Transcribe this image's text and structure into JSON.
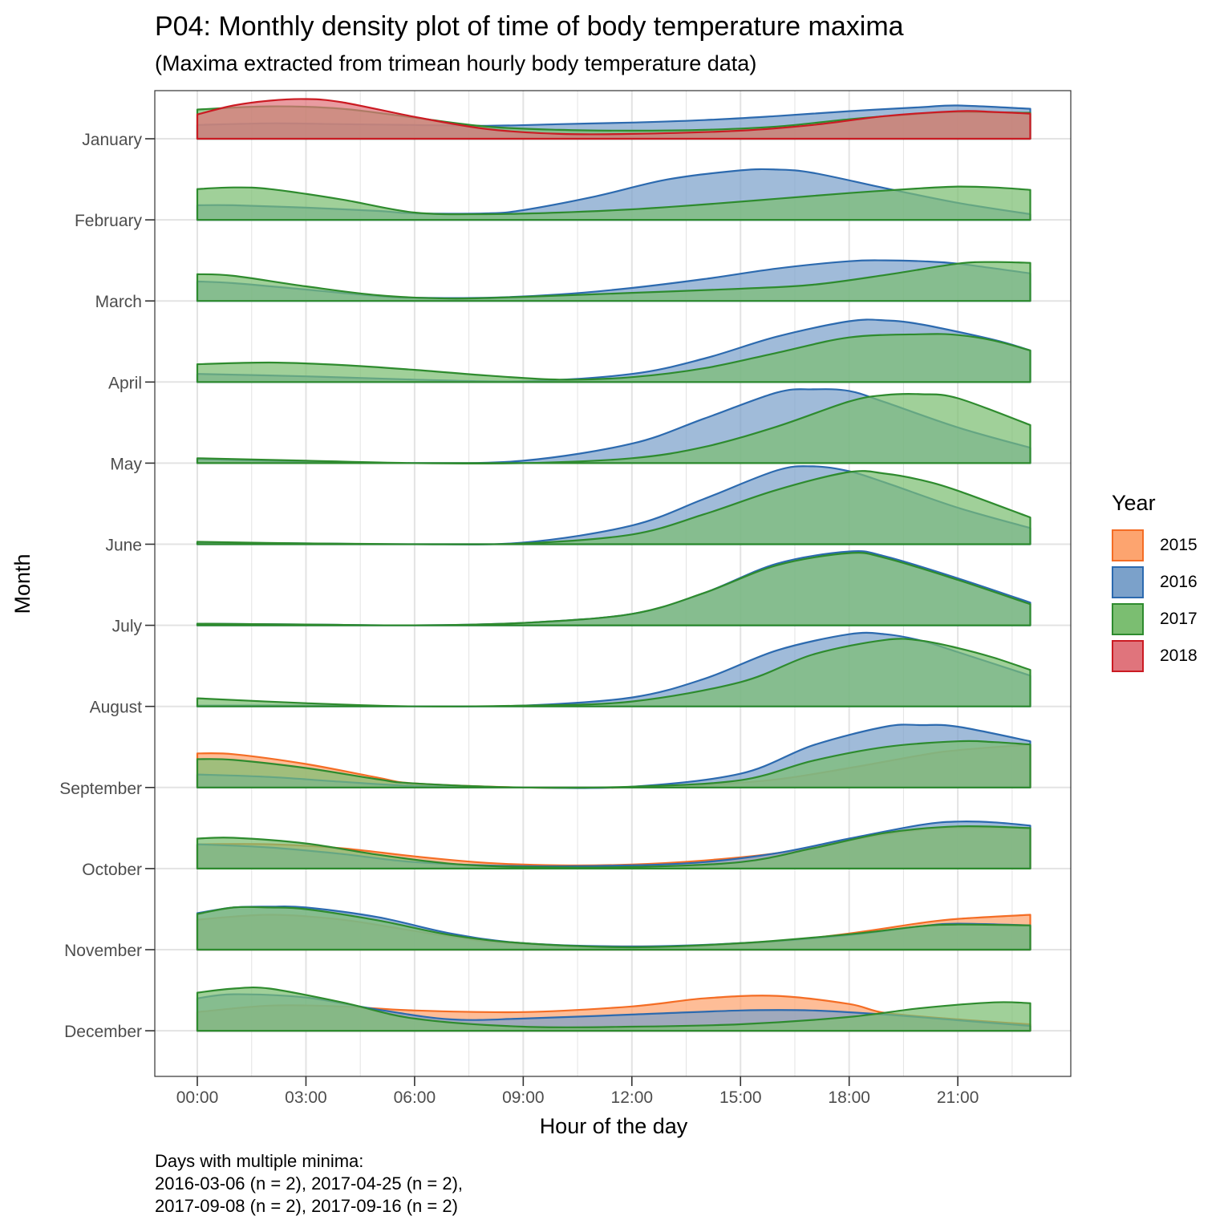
{
  "title": "P04: Monthly density plot of time of body temperature maxima",
  "subtitle": "(Maxima extracted from trimean hourly body temperature data)",
  "caption": {
    "line1": "Days with multiple minima:",
    "line2": "2016-03-06 (n = 2), 2017-04-25 (n = 2),",
    "line3": "2017-09-08 (n = 2), 2017-09-16 (n = 2)"
  },
  "chart_data": {
    "type": "area",
    "subtype": "ridgeline-density",
    "xlabel": "Hour of the day",
    "ylabel": "Month",
    "xlim": [
      0,
      23
    ],
    "x_ticks": [
      0,
      3,
      6,
      9,
      12,
      15,
      18,
      21
    ],
    "x_tick_labels": [
      "00:00",
      "03:00",
      "06:00",
      "09:00",
      "12:00",
      "15:00",
      "18:00",
      "21:00"
    ],
    "categories": [
      "January",
      "February",
      "March",
      "April",
      "May",
      "June",
      "July",
      "August",
      "September",
      "October",
      "November",
      "December"
    ],
    "legend_title": "Year",
    "legend_position": "right",
    "grid": true,
    "density_scale_note": "relative ridge height, 1.0 = one month-row spacing",
    "series": [
      {
        "name": "2015",
        "color": "#F46D25",
        "fill": "#FDA46F",
        "curves": {
          "September": {
            "x": [
              0,
              1,
              3,
              5,
              6,
              9,
              12,
              14,
              16,
              18,
              20,
              21,
              23
            ],
            "y": [
              0.42,
              0.41,
              0.29,
              0.12,
              0.05,
              0.0,
              0.0,
              0.03,
              0.1,
              0.24,
              0.4,
              0.46,
              0.53
            ]
          },
          "October": {
            "x": [
              0,
              2,
              4,
              6,
              8,
              10,
              12,
              14,
              16,
              18,
              20,
              21,
              23
            ],
            "y": [
              0.3,
              0.3,
              0.25,
              0.15,
              0.07,
              0.04,
              0.05,
              0.1,
              0.19,
              0.35,
              0.48,
              0.5,
              0.5
            ]
          },
          "November": {
            "x": [
              0,
              2,
              4,
              6,
              8,
              10,
              12,
              14,
              16,
              18,
              20,
              21,
              23
            ],
            "y": [
              0.37,
              0.43,
              0.37,
              0.23,
              0.1,
              0.05,
              0.04,
              0.05,
              0.1,
              0.2,
              0.33,
              0.38,
              0.43
            ]
          },
          "December": {
            "x": [
              0,
              2,
              4,
              6,
              9,
              12,
              14,
              16,
              18,
              19,
              21,
              23
            ],
            "y": [
              0.23,
              0.31,
              0.3,
              0.25,
              0.23,
              0.3,
              0.4,
              0.43,
              0.33,
              0.22,
              0.14,
              0.08
            ]
          }
        }
      },
      {
        "name": "2016",
        "color": "#2C6AAF",
        "fill": "#7BA1CA",
        "curves": {
          "January": {
            "x": [
              0,
              2,
              4,
              6,
              8,
              10,
              12,
              14,
              16,
              18,
              20,
              21,
              23
            ],
            "y": [
              0.17,
              0.19,
              0.18,
              0.17,
              0.16,
              0.18,
              0.2,
              0.23,
              0.28,
              0.34,
              0.39,
              0.41,
              0.37
            ]
          },
          "February": {
            "x": [
              0,
              1,
              3,
              5,
              6,
              8,
              9,
              11,
              13,
              15,
              16,
              17,
              19,
              21,
              23
            ],
            "y": [
              0.18,
              0.18,
              0.15,
              0.11,
              0.08,
              0.08,
              0.12,
              0.29,
              0.5,
              0.61,
              0.62,
              0.58,
              0.39,
              0.21,
              0.07
            ]
          },
          "March": {
            "x": [
              0,
              1,
              3,
              5,
              6,
              8,
              10,
              12,
              14,
              16,
              18,
              19,
              20,
              21,
              23
            ],
            "y": [
              0.24,
              0.22,
              0.14,
              0.06,
              0.04,
              0.04,
              0.08,
              0.16,
              0.27,
              0.4,
              0.49,
              0.5,
              0.49,
              0.46,
              0.34
            ]
          },
          "April": {
            "x": [
              0,
              3,
              6,
              9,
              12,
              14,
              16,
              18,
              19,
              20,
              22,
              23
            ],
            "y": [
              0.1,
              0.07,
              0.03,
              0.01,
              0.1,
              0.29,
              0.56,
              0.75,
              0.76,
              0.71,
              0.52,
              0.39
            ]
          },
          "May": {
            "x": [
              0,
              3,
              6,
              9,
              12,
              14,
              16,
              17,
              18,
              19,
              21,
              23
            ],
            "y": [
              0.05,
              0.02,
              0.0,
              0.03,
              0.24,
              0.55,
              0.87,
              0.91,
              0.89,
              0.75,
              0.44,
              0.19
            ]
          },
          "June": {
            "x": [
              0,
              3,
              6,
              9,
              12,
              14,
              16,
              17,
              18,
              19,
              21,
              23
            ],
            "y": [
              0.02,
              0.01,
              0.0,
              0.02,
              0.23,
              0.56,
              0.91,
              0.96,
              0.9,
              0.76,
              0.45,
              0.2
            ]
          },
          "July": {
            "x": [
              0,
              3,
              6,
              9,
              12,
              14,
              16,
              18,
              19,
              21,
              23
            ],
            "y": [
              0.02,
              0.01,
              0.0,
              0.03,
              0.14,
              0.4,
              0.76,
              0.91,
              0.85,
              0.58,
              0.28
            ]
          },
          "August": {
            "x": [
              0,
              3,
              6,
              9,
              12,
              14,
              16,
              18,
              19,
              20,
              21,
              23
            ],
            "y": [
              0.01,
              0.01,
              0.0,
              0.01,
              0.11,
              0.34,
              0.69,
              0.89,
              0.89,
              0.81,
              0.67,
              0.38
            ]
          },
          "September": {
            "x": [
              0,
              2,
              4,
              6,
              9,
              12,
              15,
              17,
              19,
              20,
              21,
              23
            ],
            "y": [
              0.16,
              0.13,
              0.07,
              0.02,
              0.0,
              0.01,
              0.17,
              0.52,
              0.75,
              0.77,
              0.75,
              0.57
            ]
          },
          "October": {
            "x": [
              0,
              2,
              4,
              6,
              9,
              12,
              14,
              16,
              18,
              20,
              21,
              22,
              23
            ],
            "y": [
              0.3,
              0.26,
              0.18,
              0.08,
              0.03,
              0.04,
              0.08,
              0.19,
              0.37,
              0.54,
              0.58,
              0.57,
              0.53
            ]
          },
          "November": {
            "x": [
              0,
              1,
              2,
              3,
              5,
              7,
              9,
              12,
              15,
              18,
              20,
              21,
              23
            ],
            "y": [
              0.45,
              0.52,
              0.53,
              0.52,
              0.4,
              0.2,
              0.08,
              0.04,
              0.08,
              0.18,
              0.29,
              0.32,
              0.3
            ]
          },
          "December": {
            "x": [
              0,
              1,
              3,
              5,
              7,
              9,
              12,
              15,
              17,
              19,
              21,
              23
            ],
            "y": [
              0.4,
              0.45,
              0.41,
              0.26,
              0.14,
              0.15,
              0.2,
              0.25,
              0.25,
              0.2,
              0.13,
              0.06
            ]
          }
        }
      },
      {
        "name": "2017",
        "color": "#2E8B2E",
        "fill": "#7BBE71",
        "curves": {
          "January": {
            "x": [
              0,
              2,
              4,
              6,
              8,
              10,
              12,
              14,
              16,
              18,
              20,
              21,
              23
            ],
            "y": [
              0.36,
              0.4,
              0.37,
              0.26,
              0.15,
              0.11,
              0.1,
              0.11,
              0.15,
              0.24,
              0.31,
              0.33,
              0.32
            ]
          },
          "February": {
            "x": [
              0,
              1,
              2,
              4,
              6,
              8,
              10,
              12,
              14,
              16,
              18,
              20,
              21,
              22,
              23
            ],
            "y": [
              0.38,
              0.4,
              0.38,
              0.25,
              0.09,
              0.07,
              0.09,
              0.13,
              0.19,
              0.26,
              0.33,
              0.39,
              0.41,
              0.4,
              0.37
            ]
          },
          "March": {
            "x": [
              0,
              1,
              3,
              5,
              7,
              9,
              12,
              15,
              17,
              19,
              21,
              22,
              23
            ],
            "y": [
              0.33,
              0.31,
              0.18,
              0.07,
              0.03,
              0.05,
              0.1,
              0.15,
              0.2,
              0.32,
              0.46,
              0.48,
              0.47
            ]
          },
          "April": {
            "x": [
              0,
              2,
              4,
              6,
              8,
              10,
              12,
              14,
              16,
              18,
              20,
              21,
              22,
              23
            ],
            "y": [
              0.22,
              0.24,
              0.21,
              0.15,
              0.08,
              0.03,
              0.06,
              0.17,
              0.36,
              0.55,
              0.59,
              0.58,
              0.51,
              0.39
            ]
          },
          "May": {
            "x": [
              0,
              3,
              6,
              9,
              12,
              14,
              16,
              18,
              19,
              20,
              21,
              23
            ],
            "y": [
              0.06,
              0.03,
              0.0,
              0.0,
              0.06,
              0.2,
              0.45,
              0.76,
              0.84,
              0.85,
              0.8,
              0.47
            ]
          },
          "June": {
            "x": [
              0,
              3,
              6,
              9,
              12,
              14,
              16,
              18,
              19,
              20,
              21,
              23
            ],
            "y": [
              0.03,
              0.01,
              0.0,
              0.01,
              0.12,
              0.37,
              0.67,
              0.89,
              0.87,
              0.79,
              0.66,
              0.33
            ]
          },
          "July": {
            "x": [
              0,
              3,
              6,
              9,
              12,
              14,
              16,
              18,
              19,
              21,
              23
            ],
            "y": [
              0.02,
              0.01,
              0.0,
              0.03,
              0.14,
              0.4,
              0.74,
              0.89,
              0.83,
              0.56,
              0.26
            ]
          },
          "August": {
            "x": [
              0,
              3,
              6,
              9,
              12,
              15,
              17,
              19,
              20,
              21,
              22,
              23
            ],
            "y": [
              0.1,
              0.04,
              0.0,
              0.01,
              0.06,
              0.3,
              0.64,
              0.82,
              0.81,
              0.72,
              0.6,
              0.45
            ]
          },
          "September": {
            "x": [
              0,
              1,
              3,
              5,
              6,
              9,
              12,
              15,
              17,
              19,
              21,
              22,
              23
            ],
            "y": [
              0.35,
              0.34,
              0.24,
              0.1,
              0.05,
              0.0,
              0.01,
              0.09,
              0.33,
              0.5,
              0.57,
              0.56,
              0.53
            ]
          },
          "October": {
            "x": [
              0,
              1,
              3,
              5,
              7,
              9,
              12,
              15,
              17,
              19,
              21,
              23
            ],
            "y": [
              0.37,
              0.38,
              0.31,
              0.17,
              0.06,
              0.02,
              0.02,
              0.08,
              0.25,
              0.44,
              0.52,
              0.5
            ]
          },
          "November": {
            "x": [
              0,
              1,
              2,
              3,
              5,
              7,
              9,
              12,
              15,
              18,
              20,
              21,
              23
            ],
            "y": [
              0.44,
              0.52,
              0.52,
              0.5,
              0.36,
              0.18,
              0.08,
              0.03,
              0.08,
              0.19,
              0.29,
              0.31,
              0.3
            ]
          },
          "December": {
            "x": [
              0,
              1,
              2,
              4,
              6,
              9,
              12,
              15,
              18,
              20,
              22,
              23
            ],
            "y": [
              0.47,
              0.52,
              0.52,
              0.35,
              0.15,
              0.05,
              0.05,
              0.08,
              0.17,
              0.28,
              0.35,
              0.34
            ]
          }
        }
      },
      {
        "name": "2018",
        "color": "#CB1B23",
        "fill": "#E0747C",
        "curves": {
          "January": {
            "x": [
              0,
              1,
              2,
              3,
              4,
              6,
              8,
              10,
              12,
              15,
              17,
              19,
              21,
              22,
              23
            ],
            "y": [
              0.3,
              0.41,
              0.47,
              0.49,
              0.45,
              0.27,
              0.12,
              0.06,
              0.06,
              0.1,
              0.17,
              0.28,
              0.34,
              0.33,
              0.31
            ]
          }
        }
      }
    ]
  }
}
